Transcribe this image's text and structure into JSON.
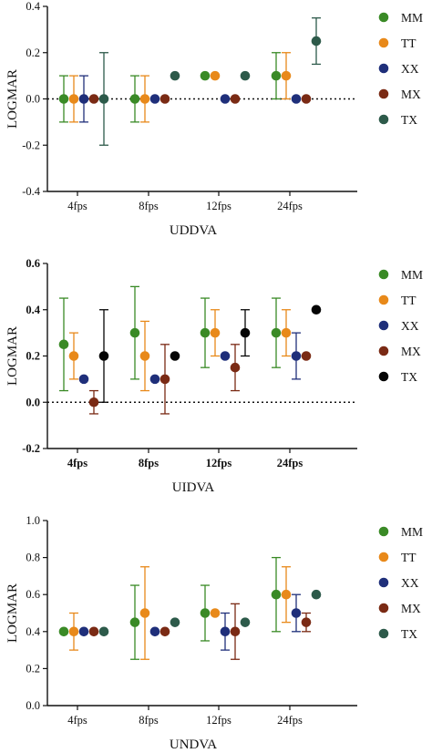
{
  "chart_data": [
    {
      "type": "scatter",
      "title": "",
      "xlabel": "UDDVA",
      "ylabel": "LOGMAR",
      "ylim": [
        -0.4,
        0.4
      ],
      "yticks": [
        "-0.4",
        "-0.2",
        "0.0",
        "0.2",
        "0.4"
      ],
      "bold_ticks": false,
      "reference_line": 0.0,
      "categories": [
        "4fps",
        "8fps",
        "12fps",
        "24fps"
      ],
      "series": [
        {
          "name": "MM",
          "color": "#3a8a26",
          "values": [
            0.0,
            0.0,
            0.1,
            0.1
          ],
          "err_low": [
            -0.1,
            -0.1,
            null,
            0.0
          ],
          "err_high": [
            0.1,
            0.1,
            null,
            0.2
          ]
        },
        {
          "name": "TT",
          "color": "#e8891a",
          "values": [
            0.0,
            0.0,
            0.1,
            0.1
          ],
          "err_low": [
            -0.1,
            -0.1,
            null,
            0.0
          ],
          "err_high": [
            0.1,
            0.1,
            null,
            0.2
          ]
        },
        {
          "name": "XX",
          "color": "#1f2f7a",
          "values": [
            0.0,
            0.0,
            0.0,
            0.0
          ],
          "err_low": [
            -0.1,
            null,
            null,
            null
          ],
          "err_high": [
            0.1,
            null,
            null,
            null
          ]
        },
        {
          "name": "MX",
          "color": "#7a2a14",
          "values": [
            0.0,
            0.0,
            0.0,
            0.0
          ],
          "err_low": [
            null,
            null,
            null,
            null
          ],
          "err_high": [
            null,
            null,
            null,
            null
          ]
        },
        {
          "name": "TX",
          "color": "#2d5a4a",
          "values": [
            0.0,
            0.1,
            0.1,
            0.25
          ],
          "err_low": [
            -0.2,
            null,
            null,
            0.15
          ],
          "err_high": [
            0.2,
            null,
            null,
            0.35
          ]
        }
      ]
    },
    {
      "type": "scatter",
      "title": "",
      "xlabel": "UIDVA",
      "ylabel": "LOGMAR",
      "ylim": [
        -0.2,
        0.6
      ],
      "yticks": [
        "-0.2",
        "0.0",
        "0.2",
        "0.4",
        "0.6"
      ],
      "bold_ticks": true,
      "reference_line": 0.0,
      "categories": [
        "4fps",
        "8fps",
        "12fps",
        "24fps"
      ],
      "series": [
        {
          "name": "MM",
          "color": "#3a8a26",
          "values": [
            0.25,
            0.3,
            0.3,
            0.3
          ],
          "err_low": [
            0.05,
            0.1,
            0.15,
            0.15
          ],
          "err_high": [
            0.45,
            0.5,
            0.45,
            0.45
          ]
        },
        {
          "name": "TT",
          "color": "#e8891a",
          "values": [
            0.2,
            0.2,
            0.3,
            0.3
          ],
          "err_low": [
            0.1,
            0.05,
            0.2,
            0.2
          ],
          "err_high": [
            0.3,
            0.35,
            0.4,
            0.4
          ]
        },
        {
          "name": "XX",
          "color": "#1f2f7a",
          "values": [
            0.1,
            0.1,
            0.2,
            0.2
          ],
          "err_low": [
            null,
            null,
            null,
            0.1
          ],
          "err_high": [
            null,
            null,
            null,
            0.3
          ]
        },
        {
          "name": "MX",
          "color": "#7a2a14",
          "values": [
            0.0,
            0.1,
            0.15,
            0.2
          ],
          "err_low": [
            -0.05,
            -0.05,
            0.05,
            null
          ],
          "err_high": [
            0.05,
            0.25,
            0.25,
            null
          ]
        },
        {
          "name": "TX",
          "color": "#050505",
          "values": [
            0.2,
            0.2,
            0.3,
            0.4
          ],
          "err_low": [
            0.0,
            null,
            0.2,
            null
          ],
          "err_high": [
            0.4,
            null,
            0.4,
            null
          ]
        }
      ]
    },
    {
      "type": "scatter",
      "title": "",
      "xlabel": "UNDVA",
      "ylabel": "LOGMAR",
      "ylim": [
        0.0,
        1.0
      ],
      "yticks": [
        "0.0",
        "0.2",
        "0.4",
        "0.6",
        "0.8",
        "1.0"
      ],
      "bold_ticks": false,
      "reference_line": null,
      "categories": [
        "4fps",
        "8fps",
        "12fps",
        "24fps"
      ],
      "series": [
        {
          "name": "MM",
          "color": "#3a8a26",
          "values": [
            0.4,
            0.45,
            0.5,
            0.6
          ],
          "err_low": [
            null,
            0.25,
            0.35,
            0.4
          ],
          "err_high": [
            null,
            0.65,
            0.65,
            0.8
          ]
        },
        {
          "name": "TT",
          "color": "#e8891a",
          "values": [
            0.4,
            0.5,
            0.5,
            0.6
          ],
          "err_low": [
            0.3,
            0.25,
            null,
            0.45
          ],
          "err_high": [
            0.5,
            0.75,
            null,
            0.75
          ]
        },
        {
          "name": "XX",
          "color": "#1f2f7a",
          "values": [
            0.4,
            0.4,
            0.4,
            0.5
          ],
          "err_low": [
            null,
            null,
            0.3,
            0.4
          ],
          "err_high": [
            null,
            null,
            0.5,
            0.6
          ]
        },
        {
          "name": "MX",
          "color": "#7a2a14",
          "values": [
            0.4,
            0.4,
            0.4,
            0.45
          ],
          "err_low": [
            null,
            null,
            0.25,
            0.4
          ],
          "err_high": [
            null,
            null,
            0.55,
            0.5
          ]
        },
        {
          "name": "TX",
          "color": "#2d5a4a",
          "values": [
            0.4,
            0.45,
            0.45,
            0.6
          ],
          "err_low": [
            null,
            null,
            null,
            null
          ],
          "err_high": [
            null,
            null,
            null,
            null
          ]
        }
      ]
    }
  ]
}
